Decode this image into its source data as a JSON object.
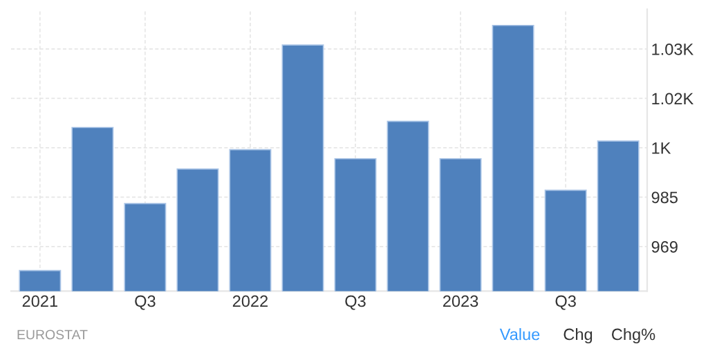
{
  "chart_data": {
    "type": "bar",
    "categories": [
      "2021",
      null,
      "Q3",
      null,
      "2022",
      null,
      "Q3",
      null,
      "2023",
      null,
      "Q3",
      null
    ],
    "values": [
      961.9,
      1006.3,
      982.7,
      993.4,
      999.4,
      1031.9,
      996.6,
      1008.2,
      996.6,
      1038.0,
      986.8,
      1002.1
    ],
    "color": "#4f81bd",
    "ylim": [
      955.5,
      1043
    ],
    "yticks": [
      {
        "value": 969.33,
        "label": "969"
      },
      {
        "value": 984.67,
        "label": "985"
      },
      {
        "value": 1000,
        "label": "1K"
      },
      {
        "value": 1015.33,
        "label": "1.02K"
      },
      {
        "value": 1030.67,
        "label": "1.03K"
      }
    ],
    "grid": true,
    "annotations": [
      "EUROSTAT",
      "Value",
      "Chg",
      "Chg%"
    ]
  }
}
